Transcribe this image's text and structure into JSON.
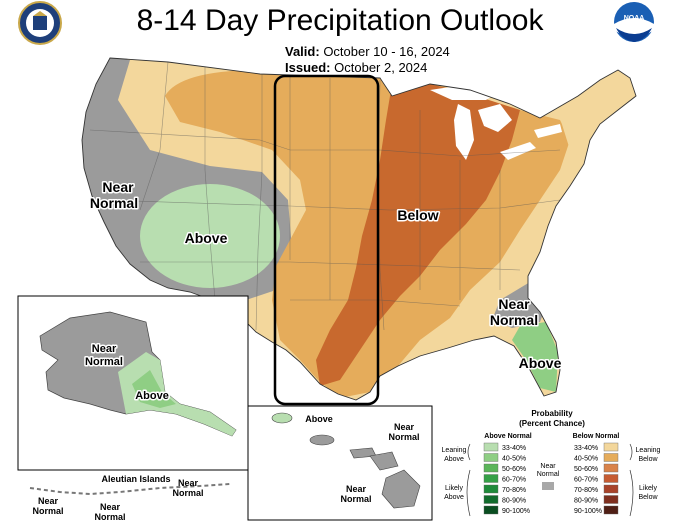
{
  "header": {
    "title": "8-14 Day Precipitation Outlook",
    "valid_label": "Valid:",
    "valid_value": "October 10 - 16, 2024",
    "issued_label": "Issued:",
    "issued_value": "October 2, 2024"
  },
  "logos": {
    "left": "seal-icon",
    "right": "noaa-logo",
    "right_text": "NOAA"
  },
  "map_labels": {
    "west_near_normal_1": "Near",
    "west_near_normal_2": "Normal",
    "west_above": "Above",
    "central_below": "Below",
    "se_near_normal_1": "Near",
    "se_near_normal_2": "Normal",
    "se_above": "Above"
  },
  "alaska": {
    "near_normal_1": "Near",
    "near_normal_2": "Normal",
    "above": "Above",
    "aleutian_title": "Aleutian Islands",
    "aleutian_nn_a_1": "Near",
    "aleutian_nn_a_2": "Normal",
    "aleutian_nn_b_1": "Near",
    "aleutian_nn_b_2": "Normal",
    "aleutian_nn_c_1": "Near",
    "aleutian_nn_c_2": "Normal"
  },
  "hawaii": {
    "above": "Above",
    "near_normal_a_1": "Near",
    "near_normal_a_2": "Normal",
    "near_normal_b_1": "Near",
    "near_normal_b_2": "Normal"
  },
  "legend": {
    "title_1": "Probability",
    "title_2": "(Percent Chance)",
    "above_header": "Above Normal",
    "below_header": "Below Normal",
    "above_ranges": [
      "33-40%",
      "40-50%",
      "50-60%",
      "60-70%",
      "70-80%",
      "80-90%",
      "90-100%"
    ],
    "below_ranges": [
      "33-40%",
      "40-50%",
      "50-60%",
      "60-70%",
      "70-80%",
      "80-90%",
      "90-100%"
    ],
    "above_colors": [
      "#b8deb0",
      "#8fce84",
      "#5bb55a",
      "#35a047",
      "#1f8a3a",
      "#116b2c",
      "#0a4d20"
    ],
    "below_colors": [
      "#f3d79c",
      "#e5ac5b",
      "#d9834a",
      "#c65c33",
      "#a8432a",
      "#7f2f1f",
      "#4f1f15"
    ],
    "near_normal_color": "#a8a8a8",
    "leaning_above_1": "Leaning",
    "leaning_above_2": "Above",
    "likely_above_1": "Likely",
    "likely_above_2": "Above",
    "near_normal_1": "Near",
    "near_normal_2": "Normal",
    "leaning_below_1": "Leaning",
    "leaning_below_2": "Below",
    "likely_below_1": "Likely",
    "likely_below_2": "Below"
  },
  "colors": {
    "near_normal": "#9b9b9b",
    "above_light": "#b8deb0",
    "above_mid": "#8fce84",
    "below_light": "#f3d79c",
    "below_mid": "#e5ac5b",
    "below_dark": "#c8692e",
    "water": "#ffffff",
    "highlight_box": "#000000"
  }
}
